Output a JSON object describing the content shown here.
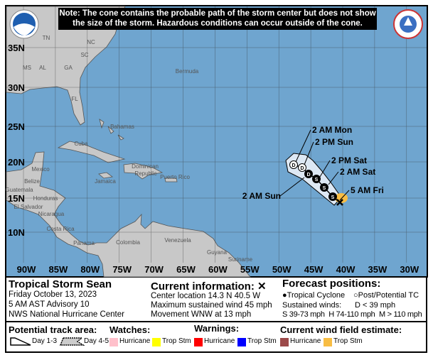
{
  "note": {
    "line1": "Note: The cone contains the probable path of the storm center but does not show",
    "line2": "the size of the storm. Hazardous conditions can occur outside of the cone."
  },
  "logos": {
    "left": "NOAA",
    "right": "NATIONAL WEATHER SERVICE"
  },
  "map": {
    "lat_labels": [
      "35N",
      "30N",
      "25N",
      "20N",
      "15N",
      "10N"
    ],
    "lon_labels": [
      "90W",
      "85W",
      "80W",
      "75W",
      "70W",
      "65W",
      "60W",
      "55W",
      "50W",
      "45W",
      "40W",
      "35W",
      "30W"
    ],
    "place_labels": [
      "TN",
      "NC",
      "SC",
      "MS",
      "AL",
      "GA",
      "FL",
      "Bermuda",
      "Bahamas",
      "Cuba",
      "Mexico",
      "Dominican",
      "Republic",
      "Puerto Rico",
      "Jamaica",
      "Belize",
      "Guatemala",
      "Honduras",
      "El Salvador",
      "Nicaragua",
      "Costa Rica",
      "Panama",
      "Colombia",
      "Venezuela",
      "Guyana",
      "Suriname"
    ],
    "colors": {
      "ocean": "#6fa5cf",
      "land": "#c8c8c8",
      "cone": "#dde8f4",
      "wind_tropstm": "#f8bd44"
    },
    "forecast_points": [
      {
        "label": "5 AM Fri",
        "type": "current"
      },
      {
        "label": "",
        "type": "S"
      },
      {
        "label": "2 AM Sat",
        "type": "S"
      },
      {
        "label": "2 PM Sat",
        "type": "S"
      },
      {
        "label": "2 AM Sun",
        "type": "D"
      },
      {
        "label": "2 PM Sun",
        "type": "D-post"
      },
      {
        "label": "2 AM Mon",
        "type": "D-post"
      }
    ]
  },
  "info": {
    "storm_name": "Tropical Storm Sean",
    "date": "Friday October 13, 2023",
    "advisory": "5 AM AST Advisory 10",
    "center": "NWS National Hurricane Center",
    "current_title": "Current information: ✕",
    "location": "Center location 14.3 N 40.5 W",
    "max_wind": "Maximum sustained wind 45 mph",
    "movement": "Movement WNW at 13 mph",
    "forecast_title": "Forecast positions:",
    "tc_label": "Tropical Cyclone",
    "post_label": "Post/Potential TC",
    "winds_label": "Sustained winds:",
    "d_label": "D < 39 mph",
    "shm_label": "S 39-73 mph  H 74-110 mph  M > 110 mph"
  },
  "legend": {
    "track_title": "Potential track area:",
    "day13": "Day 1-3",
    "day45": "Day 4-5",
    "watches_title": "Watches:",
    "warnings_title": "Warnings:",
    "wind_title": "Current wind field estimate:",
    "items": [
      {
        "label": "Hurricane",
        "color": "#ffc0cb"
      },
      {
        "label": "Trop Stm",
        "color": "#ffff00"
      },
      {
        "label": "Hurricane",
        "color": "#ff0000"
      },
      {
        "label": "Trop Stm",
        "color": "#0000ff"
      },
      {
        "label": "Hurricane",
        "color": "#9c4a4a"
      },
      {
        "label": "Trop Stm",
        "color": "#f8bd44"
      }
    ]
  }
}
